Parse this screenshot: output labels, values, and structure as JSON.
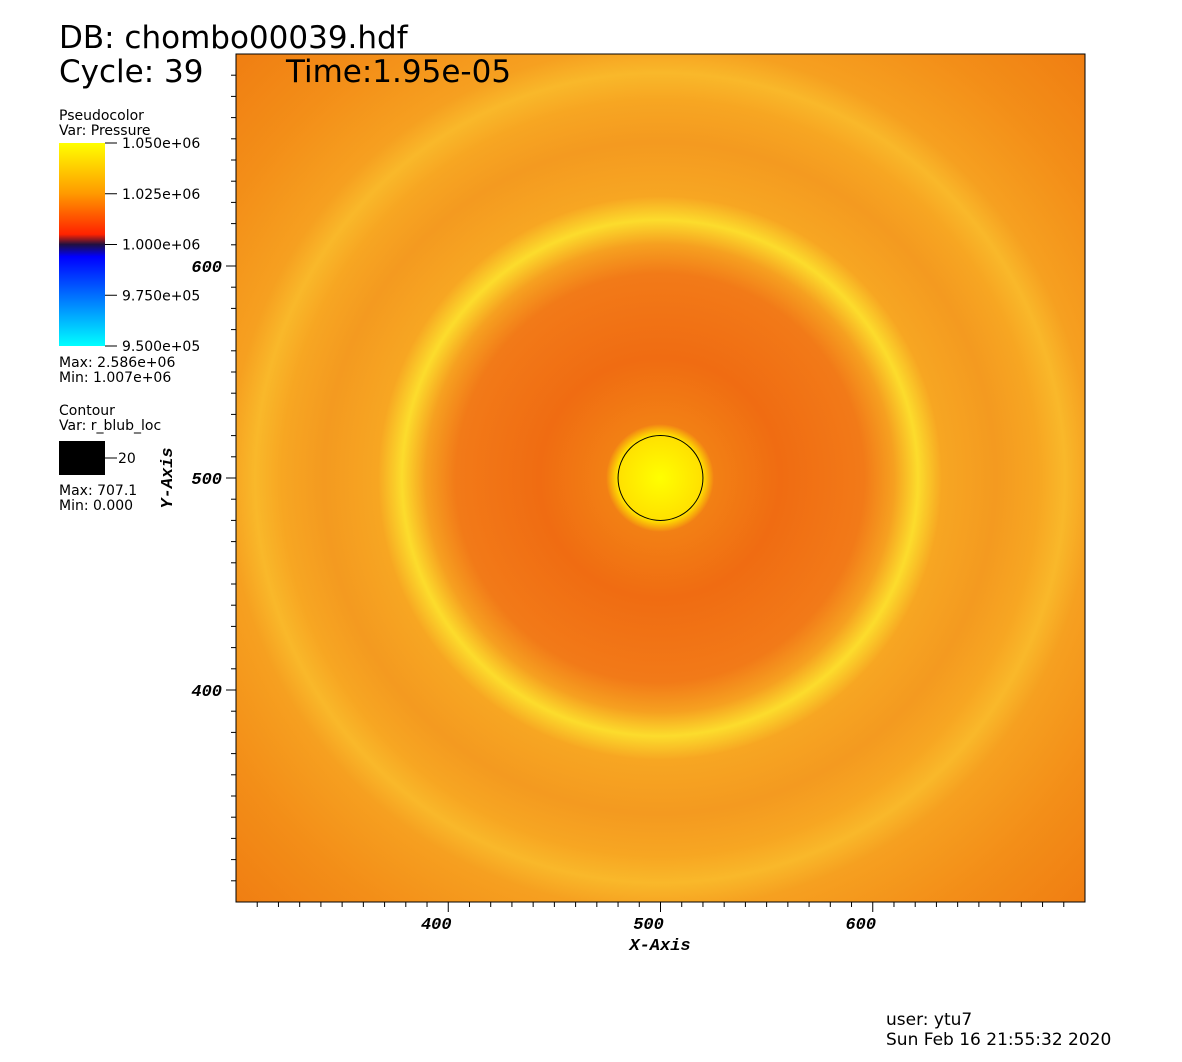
{
  "chart_data": {
    "type": "pseudocolor",
    "title": "DB: chombo00039.hdf",
    "cycle": "Cycle: 39",
    "time": "Time:1.95e-05",
    "x_label": "X-Axis",
    "y_label": "Y-Axis",
    "xlim": [
      300,
      700
    ],
    "ylim": [
      300,
      700
    ],
    "xticks": [
      400,
      500,
      600
    ],
    "yticks": [
      400,
      500,
      600
    ],
    "x_minor_ticks": [
      310,
      320,
      330,
      340,
      350,
      360,
      370,
      380,
      390,
      410,
      420,
      430,
      440,
      450,
      460,
      470,
      480,
      490,
      510,
      520,
      530,
      540,
      550,
      560,
      570,
      580,
      590,
      610,
      620,
      630,
      640,
      650,
      660,
      670,
      680,
      690
    ],
    "y_minor_ticks": [
      310,
      320,
      330,
      340,
      350,
      360,
      370,
      380,
      390,
      410,
      420,
      430,
      440,
      450,
      460,
      470,
      480,
      490,
      510,
      520,
      530,
      540,
      550,
      560,
      570,
      580,
      590,
      610,
      620,
      630,
      640,
      650,
      660,
      670,
      680,
      690
    ],
    "pseudocolor": {
      "heading": "Pseudocolor",
      "var": "Var: Pressure",
      "range": [
        950000,
        1050000
      ],
      "ticks": [
        {
          "value": 1050000,
          "label": "1.050e+06"
        },
        {
          "value": 1025000,
          "label": "1.025e+06"
        },
        {
          "value": 1000000,
          "label": "1.000e+06"
        },
        {
          "value": 975000,
          "label": "9.750e+05"
        },
        {
          "value": 950000,
          "label": "9.500e+05"
        }
      ],
      "max": "Max: 2.586e+06",
      "min": "Min:  1.007e+06"
    },
    "contour": {
      "heading": "Contour",
      "var": "Var: r_blub_loc",
      "levels": [
        20
      ],
      "color": "#000000",
      "max": "Max: 707.1",
      "min": "Min: 0.000"
    },
    "user": "user: ytu7",
    "date": "Sun Feb 16 21:55:32 2020"
  }
}
